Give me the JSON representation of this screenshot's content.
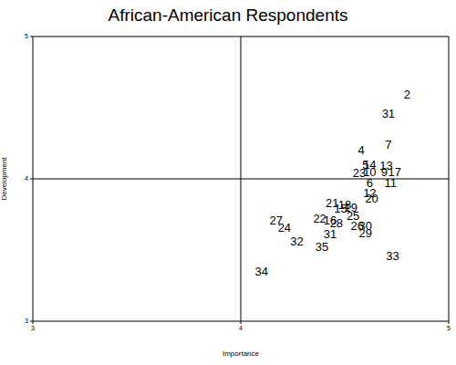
{
  "chart_data": {
    "type": "scatter",
    "title": "African-American Respondents",
    "x_label": "Importance",
    "y_label": "Development",
    "labels": [
      "2",
      "31",
      "7",
      "4",
      "5",
      "14",
      "13",
      "23",
      "10",
      "9",
      "17",
      "6",
      "11",
      "12",
      "20",
      "21",
      "18",
      "15",
      "19",
      "25",
      "22",
      "16",
      "28",
      "27",
      "24",
      "26",
      "30",
      "29",
      "31",
      "32",
      "35",
      "33",
      "34"
    ],
    "x": [
      4.8,
      4.71,
      4.71,
      4.58,
      4.6,
      4.62,
      4.7,
      4.57,
      4.62,
      4.69,
      4.74,
      4.62,
      4.72,
      4.62,
      4.63,
      4.44,
      4.5,
      4.48,
      4.53,
      4.54,
      4.38,
      4.43,
      4.46,
      4.17,
      4.21,
      4.56,
      4.6,
      4.6,
      4.43,
      4.27,
      4.39,
      4.73,
      4.1
    ],
    "values": [
      4.59,
      4.46,
      4.24,
      4.2,
      4.1,
      4.1,
      4.09,
      4.04,
      4.05,
      4.05,
      4.05,
      3.97,
      3.97,
      3.9,
      3.86,
      3.83,
      3.82,
      3.79,
      3.8,
      3.74,
      3.72,
      3.71,
      3.69,
      3.71,
      3.66,
      3.67,
      3.67,
      3.62,
      3.61,
      3.56,
      3.52,
      3.46,
      3.35
    ],
    "xlim": [
      3,
      5
    ],
    "ylim": [
      3,
      5
    ],
    "xticks": [
      3,
      4,
      5
    ],
    "yticks": [
      3,
      4,
      5
    ],
    "reference_lines": {
      "x": [
        4
      ],
      "y": [
        4
      ]
    },
    "color": "#000000",
    "marker": "label"
  }
}
